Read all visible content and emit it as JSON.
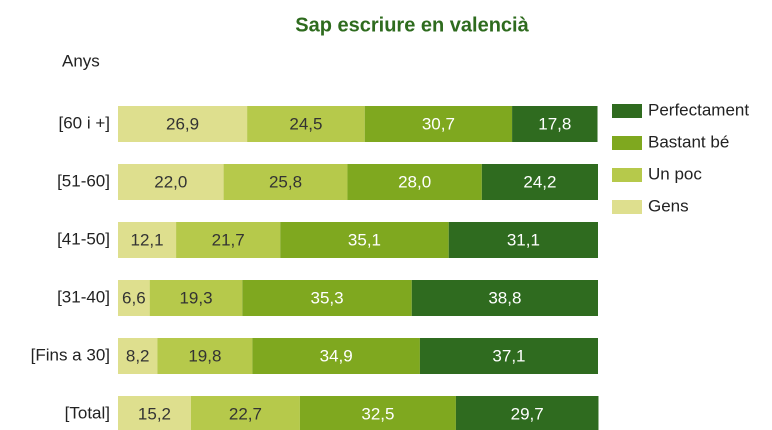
{
  "chart_data": {
    "type": "stacked_barh",
    "title": "Sap escriure en valencià",
    "y_label": "Anys",
    "categories": [
      "[60 i +]",
      "[51-60]",
      "[41-50]",
      "[31-40]",
      "[Fins a 30]",
      "[Total]"
    ],
    "xlim": [
      0,
      100
    ],
    "series": [
      {
        "name": "Gens",
        "color": "#dedf8e",
        "text_color": "#333333",
        "values": [
          26.9,
          22.0,
          12.1,
          6.6,
          8.2,
          15.2
        ],
        "value_labels": [
          "26,9",
          "22,0",
          "12,1",
          "6,6",
          "8,2",
          "15,2"
        ]
      },
      {
        "name": "Un poc",
        "color": "#b6c94b",
        "text_color": "#333333",
        "values": [
          24.5,
          25.8,
          21.7,
          19.3,
          19.8,
          22.7
        ],
        "value_labels": [
          "24,5",
          "25,8",
          "21,7",
          "19,3",
          "19,8",
          "22,7"
        ]
      },
      {
        "name": "Bastant bé",
        "color": "#7fa81f",
        "text_color": "#ffffff",
        "values": [
          30.7,
          28.0,
          35.1,
          35.3,
          34.9,
          32.5
        ],
        "value_labels": [
          "30,7",
          "28,0",
          "35,1",
          "35,3",
          "34,9",
          "32,5"
        ]
      },
      {
        "name": "Perfectament",
        "color": "#2f6b1f",
        "text_color": "#ffffff",
        "values": [
          17.8,
          24.2,
          31.1,
          38.8,
          37.1,
          29.7
        ],
        "value_labels": [
          "17,8",
          "24,2",
          "31,1",
          "38,8",
          "37,1",
          "29,7"
        ]
      }
    ],
    "legend": "right"
  }
}
